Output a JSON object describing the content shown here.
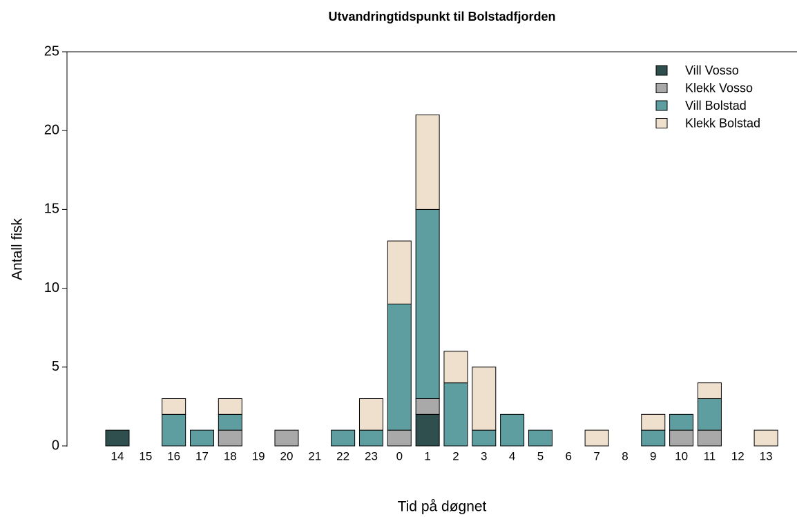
{
  "chart_data": {
    "type": "stacked-bar",
    "title": "Utvandringtidspunkt til Bolstadfjorden",
    "x_label": "Tid på døgnet",
    "y_label": "Antall fisk",
    "categories": [
      "14",
      "15",
      "16",
      "17",
      "18",
      "19",
      "20",
      "21",
      "22",
      "23",
      "0",
      "1",
      "2",
      "3",
      "4",
      "5",
      "6",
      "7",
      "8",
      "9",
      "10",
      "11",
      "12",
      "13"
    ],
    "series": [
      {
        "name": "Vill Vosso",
        "color": "#2f4f4f",
        "values": [
          1,
          0,
          0,
          0,
          0,
          0,
          0,
          0,
          0,
          0,
          0,
          2,
          0,
          0,
          0,
          0,
          0,
          0,
          0,
          0,
          0,
          0,
          0,
          0
        ]
      },
      {
        "name": "Klekk Vosso",
        "color": "#a9a9a9",
        "values": [
          0,
          0,
          0,
          0,
          1,
          0,
          1,
          0,
          0,
          0,
          1,
          1,
          0,
          0,
          0,
          0,
          0,
          0,
          0,
          0,
          1,
          1,
          0,
          0
        ]
      },
      {
        "name": "Vill Bolstad",
        "color": "#5f9ea0",
        "values": [
          0,
          0,
          2,
          1,
          1,
          0,
          0,
          0,
          1,
          1,
          8,
          12,
          4,
          1,
          2,
          1,
          0,
          0,
          0,
          1,
          1,
          2,
          0,
          0
        ]
      },
      {
        "name": "Klekk Bolstad",
        "color": "#eee0cd",
        "values": [
          0,
          0,
          1,
          0,
          1,
          0,
          0,
          0,
          0,
          2,
          4,
          6,
          2,
          4,
          0,
          0,
          0,
          1,
          0,
          1,
          0,
          1,
          0,
          1
        ]
      }
    ],
    "ylim": [
      0,
      25
    ],
    "yticks": [
      0,
      5,
      10,
      15,
      20,
      25
    ],
    "legend": "top-right"
  }
}
